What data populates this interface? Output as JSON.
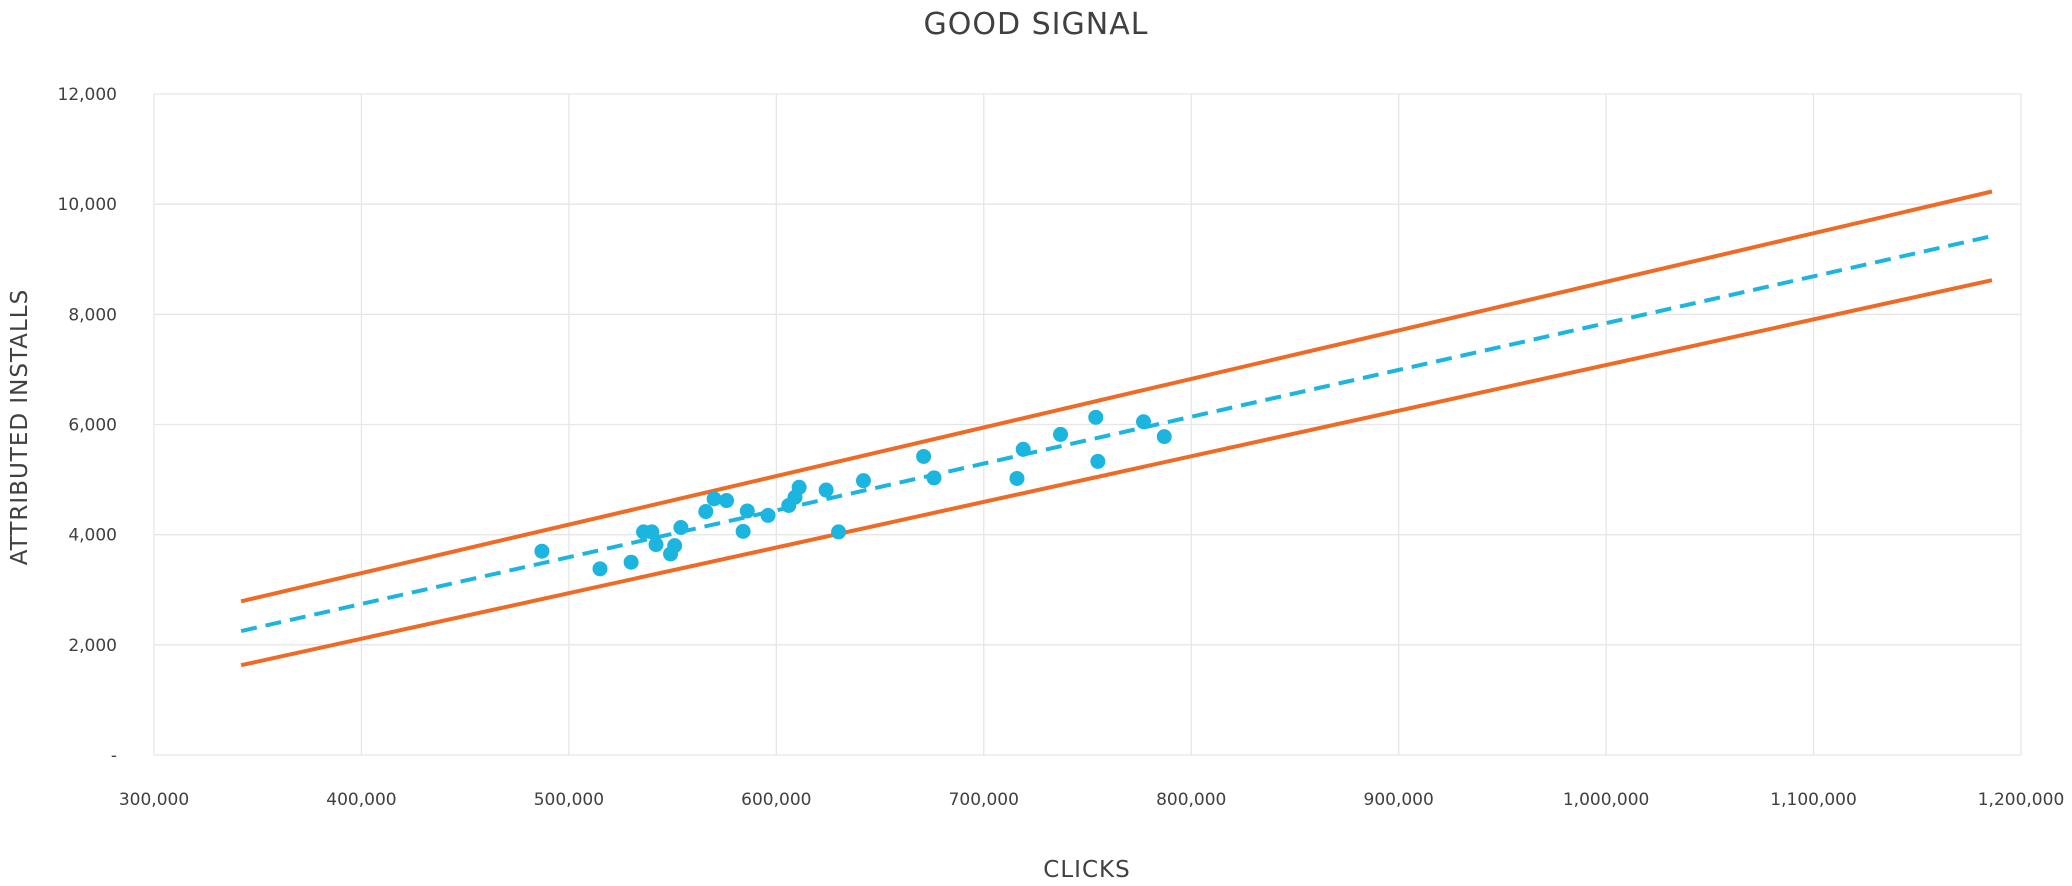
{
  "chart_data": {
    "type": "scatter",
    "title": "GOOD SIGNAL",
    "xlabel": "CLICKS",
    "ylabel": "ATTRIBUTED INSTALLS",
    "xlim": [
      300000,
      1200000
    ],
    "ylim": [
      0,
      12000
    ],
    "x_ticks": [
      300000,
      400000,
      500000,
      600000,
      700000,
      800000,
      900000,
      1000000,
      1100000,
      1200000
    ],
    "x_tick_labels": [
      "300,000",
      "400,000",
      "500,000",
      "600,000",
      "700,000",
      "800,000",
      "900,000",
      "1,000,000",
      "1,100,000",
      "1,200,000"
    ],
    "y_ticks": [
      0,
      2000,
      4000,
      6000,
      8000,
      10000,
      12000
    ],
    "y_tick_labels": [
      "-",
      "2,000",
      "4,000",
      "6,000",
      "8,000",
      "10,000",
      "12,000"
    ],
    "grid": true,
    "colors": {
      "points": "#1cb5e0",
      "trend": "#1cb5e0",
      "bounds": "#ee6a25",
      "grid": "#e6e6e6"
    },
    "points": [
      {
        "x": 487000,
        "y": 3700
      },
      {
        "x": 515000,
        "y": 3380
      },
      {
        "x": 530000,
        "y": 3500
      },
      {
        "x": 536000,
        "y": 4050
      },
      {
        "x": 540000,
        "y": 4050
      },
      {
        "x": 542000,
        "y": 3820
      },
      {
        "x": 549000,
        "y": 3650
      },
      {
        "x": 551000,
        "y": 3800
      },
      {
        "x": 554000,
        "y": 4130
      },
      {
        "x": 566000,
        "y": 4420
      },
      {
        "x": 570000,
        "y": 4650
      },
      {
        "x": 576000,
        "y": 4620
      },
      {
        "x": 584000,
        "y": 4060
      },
      {
        "x": 586000,
        "y": 4430
      },
      {
        "x": 596000,
        "y": 4350
      },
      {
        "x": 606000,
        "y": 4530
      },
      {
        "x": 609000,
        "y": 4680
      },
      {
        "x": 611000,
        "y": 4860
      },
      {
        "x": 624000,
        "y": 4810
      },
      {
        "x": 630000,
        "y": 4050
      },
      {
        "x": 642000,
        "y": 4980
      },
      {
        "x": 671000,
        "y": 5420
      },
      {
        "x": 676000,
        "y": 5030
      },
      {
        "x": 716000,
        "y": 5020
      },
      {
        "x": 719000,
        "y": 5550
      },
      {
        "x": 737000,
        "y": 5820
      },
      {
        "x": 754000,
        "y": 6130
      },
      {
        "x": 755000,
        "y": 5330
      },
      {
        "x": 777000,
        "y": 6050
      },
      {
        "x": 787000,
        "y": 5780
      }
    ],
    "trend_line": {
      "style": "dashed",
      "x": [
        342000,
        1186000
      ],
      "y": [
        2250,
        9420
      ]
    },
    "upper_bound": {
      "style": "solid",
      "x": [
        342000,
        1186000
      ],
      "y": [
        2790,
        10230
      ]
    },
    "lower_bound": {
      "style": "solid",
      "x": [
        342000,
        1186000
      ],
      "y": [
        1630,
        8620
      ]
    }
  }
}
